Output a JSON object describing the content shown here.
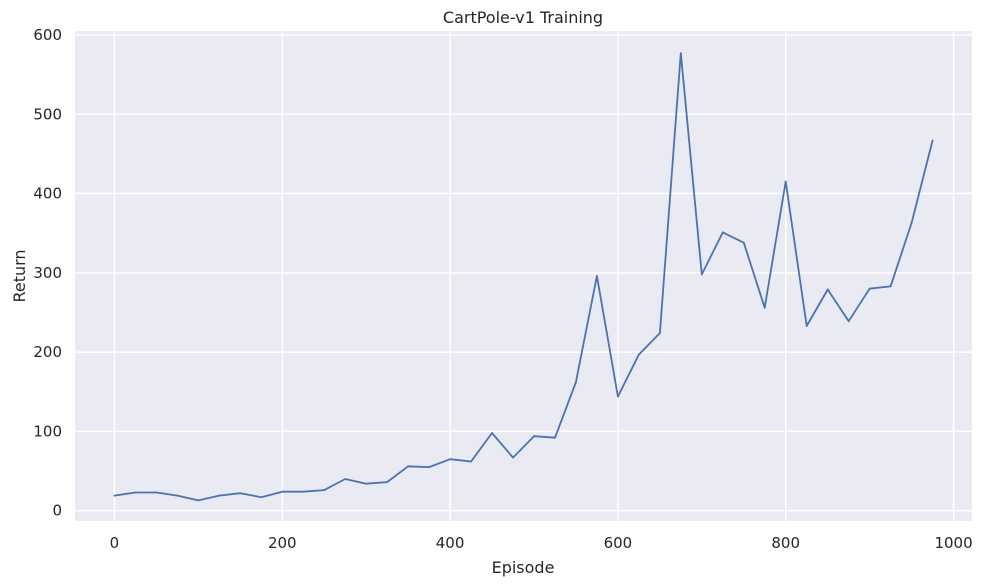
{
  "chart_data": {
    "type": "line",
    "title": "CartPole-v1 Training",
    "xlabel": "Episode",
    "ylabel": "Return",
    "xlim": [
      -47,
      1022
    ],
    "ylim": [
      -13,
      605
    ],
    "xticks": [
      0,
      200,
      400,
      600,
      800,
      1000
    ],
    "yticks": [
      0,
      100,
      200,
      300,
      400,
      500,
      600
    ],
    "grid": true,
    "colors": {
      "background": "#eaeaf2",
      "grid": "#ffffff",
      "line": "#4c72b0",
      "text": "#262626"
    },
    "series": [
      {
        "x": [
          0,
          25,
          50,
          75,
          100,
          125,
          150,
          175,
          200,
          225,
          250,
          275,
          300,
          325,
          350,
          375,
          400,
          425,
          450,
          475,
          500,
          525,
          550,
          575,
          600,
          625,
          650,
          675,
          700,
          725,
          750,
          775,
          800,
          825,
          850,
          875,
          900,
          925,
          950,
          975
        ],
        "values": [
          19,
          23,
          23,
          19,
          13,
          19,
          22,
          17,
          24,
          24,
          26,
          40,
          34,
          36,
          56,
          55,
          65,
          62,
          98,
          67,
          94,
          92,
          162,
          296,
          144,
          197,
          224,
          577,
          298,
          351,
          338,
          256,
          415,
          233,
          279,
          239,
          280,
          283,
          363,
          467
        ]
      }
    ]
  }
}
